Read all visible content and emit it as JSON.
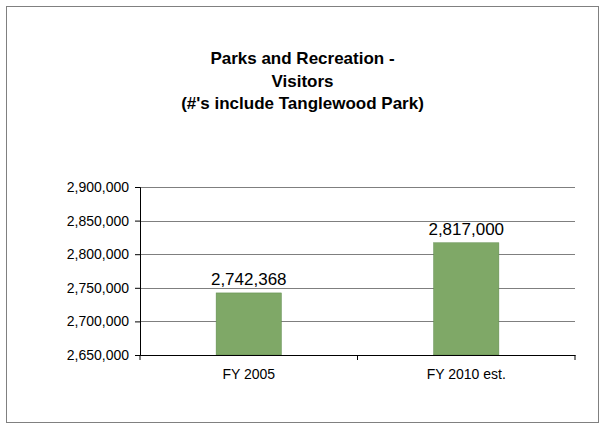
{
  "chart_data": {
    "type": "bar",
    "title": "Parks and Recreation - Visitors",
    "subtitle": "(#'s include Tanglewood Park)",
    "categories": [
      "FY 2005",
      "FY 2010 est."
    ],
    "values": [
      2742368,
      2817000
    ],
    "value_labels": [
      "2,742,368",
      "2,817,000"
    ],
    "data_labels": true,
    "color": "#7fa867",
    "ylim": [
      2650000,
      2900000
    ],
    "yticks": [
      {
        "value": 2650000,
        "label": "2,650,000"
      },
      {
        "value": 2700000,
        "label": "2,700,000"
      },
      {
        "value": 2750000,
        "label": "2,750,000"
      },
      {
        "value": 2800000,
        "label": "2,800,000"
      },
      {
        "value": 2850000,
        "label": "2,850,000"
      },
      {
        "value": 2900000,
        "label": "2,900,000"
      }
    ],
    "grid": true
  }
}
